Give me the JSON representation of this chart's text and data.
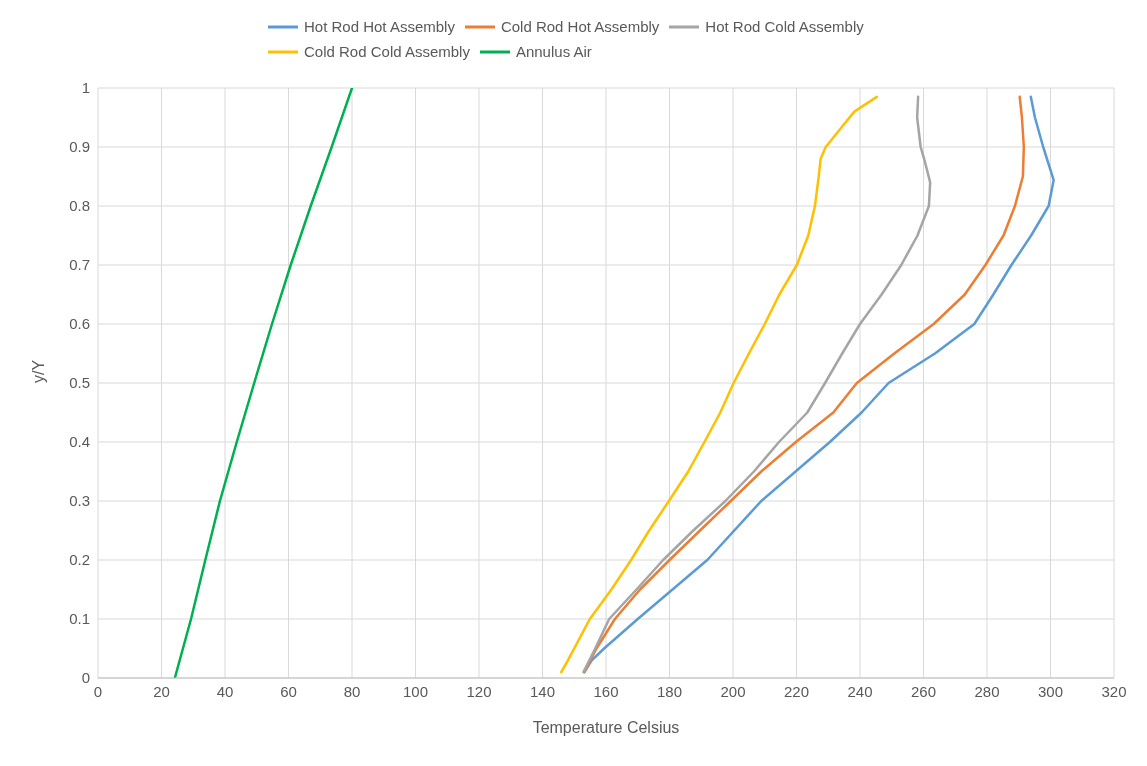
{
  "chart_data": {
    "type": "line",
    "xlabel": "Temperature Celsius",
    "ylabel": "y/Y",
    "xlim": [
      0,
      320
    ],
    "xticks": [
      0,
      20,
      40,
      60,
      80,
      100,
      120,
      140,
      160,
      180,
      200,
      220,
      240,
      260,
      280,
      300,
      320
    ],
    "ylim": [
      0,
      1
    ],
    "yticks": [
      0,
      0.1,
      0.2,
      0.3,
      0.4,
      0.5,
      0.6,
      0.7,
      0.8,
      0.9,
      1
    ],
    "grid": true,
    "legend": "top",
    "marker": "none",
    "line_style": "solid",
    "series": [
      {
        "name": "Hot Rod Hot Assembly",
        "color": "#5b9bd5",
        "x": [
          153.2,
          155.5,
          159.4,
          170,
          191.9,
          208.9,
          230.5,
          240.5,
          249,
          263.6,
          276,
          282,
          287.7,
          293.9,
          299.4,
          301,
          297.7,
          295.1,
          293.8
        ],
        "values": [
          0.01,
          0.03,
          0.05,
          0.1,
          0.2,
          0.3,
          0.4,
          0.45,
          0.5,
          0.55,
          0.6,
          0.65,
          0.7,
          0.75,
          0.8,
          0.844,
          0.9,
          0.95,
          0.985
        ]
      },
      {
        "name": "Cold Rod Hot Assembly",
        "color": "#ed7d31",
        "x": [
          153.2,
          157,
          162.8,
          170.7,
          180,
          189.6,
          199.3,
          208.9,
          219.8,
          231.6,
          239,
          250.8,
          263.2,
          273,
          279.5,
          285.2,
          288.8,
          291.3,
          291.6,
          291,
          290.3
        ],
        "values": [
          0.01,
          0.05,
          0.1,
          0.15,
          0.2,
          0.25,
          0.3,
          0.35,
          0.4,
          0.45,
          0.5,
          0.55,
          0.6,
          0.65,
          0.7,
          0.75,
          0.8,
          0.85,
          0.9,
          0.95,
          0.985
        ]
      },
      {
        "name": "Hot Rod Cold Assembly",
        "color": "#a5a5a5",
        "x": [
          152.9,
          156.6,
          161,
          169.6,
          178,
          187.5,
          197.6,
          206.6,
          214.5,
          223.4,
          229,
          234.4,
          240,
          246.8,
          253,
          258.1,
          261.7,
          262.1,
          260.2,
          259.1,
          258,
          258.3
        ],
        "values": [
          0.01,
          0.05,
          0.1,
          0.15,
          0.2,
          0.25,
          0.3,
          0.35,
          0.4,
          0.45,
          0.5,
          0.55,
          0.6,
          0.65,
          0.7,
          0.75,
          0.8,
          0.84,
          0.88,
          0.9,
          0.95,
          0.985
        ]
      },
      {
        "name": "Cold Rod Cold Assembly",
        "color": "#ffc000",
        "x": [
          145.9,
          148,
          154.9,
          161.7,
          167.9,
          173.6,
          179.8,
          185.9,
          191,
          196,
          200.2,
          205,
          210,
          214.6,
          220.1,
          223.7,
          225.8,
          227,
          227.6,
          229.2,
          233.7,
          238.2,
          245.3
        ],
        "values": [
          0.01,
          0.03,
          0.1,
          0.15,
          0.2,
          0.25,
          0.3,
          0.35,
          0.4,
          0.45,
          0.5,
          0.55,
          0.6,
          0.65,
          0.7,
          0.75,
          0.8,
          0.85,
          0.88,
          0.9,
          0.93,
          0.96,
          0.985
        ]
      },
      {
        "name": "Annulus Air",
        "color": "#00b050",
        "x": [
          24.2,
          29.3,
          33.8,
          38.4,
          43.7,
          49.2,
          54.8,
          60.7,
          67,
          73.6,
          80
        ],
        "values": [
          0,
          0.1,
          0.2,
          0.3,
          0.4,
          0.5,
          0.6,
          0.7,
          0.8,
          0.9,
          1
        ]
      }
    ]
  }
}
